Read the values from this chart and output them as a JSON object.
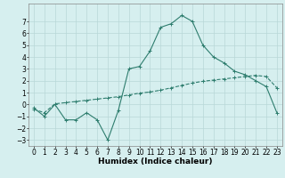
{
  "line1_x": [
    0,
    1,
    2,
    3,
    4,
    5,
    6,
    7,
    8,
    9,
    10,
    11,
    12,
    13,
    14,
    15,
    16,
    17,
    18,
    19,
    20,
    21,
    22,
    23
  ],
  "line1_y": [
    -0.3,
    -1.0,
    0.0,
    -1.3,
    -1.3,
    -0.7,
    -1.3,
    -3.0,
    -0.5,
    3.0,
    3.2,
    4.5,
    6.5,
    6.8,
    7.5,
    7.0,
    5.0,
    4.0,
    3.5,
    2.8,
    2.5,
    2.0,
    1.5,
    -0.7
  ],
  "line2_x": [
    0,
    1,
    2,
    3,
    4,
    5,
    6,
    7,
    8,
    9,
    10,
    11,
    12,
    13,
    14,
    15,
    16,
    17,
    18,
    19,
    20,
    21,
    22,
    23
  ],
  "line2_y": [
    -0.4,
    -0.7,
    0.05,
    0.15,
    0.25,
    0.35,
    0.45,
    0.55,
    0.65,
    0.8,
    0.95,
    1.05,
    1.2,
    1.4,
    1.6,
    1.8,
    1.95,
    2.05,
    2.15,
    2.25,
    2.35,
    2.45,
    2.35,
    1.4
  ],
  "line_color": "#2e7d6e",
  "bg_color": "#d6efef",
  "grid_color": "#b8d8d8",
  "xlabel": "Humidex (Indice chaleur)",
  "ylim": [
    -3.5,
    8.5
  ],
  "xlim": [
    -0.5,
    23.5
  ],
  "yticks": [
    -3,
    -2,
    -1,
    0,
    1,
    2,
    3,
    4,
    5,
    6,
    7
  ],
  "xticks": [
    0,
    1,
    2,
    3,
    4,
    5,
    6,
    7,
    8,
    9,
    10,
    11,
    12,
    13,
    14,
    15,
    16,
    17,
    18,
    19,
    20,
    21,
    22,
    23
  ],
  "marker": "+",
  "linewidth": 0.8,
  "fontsize": 5.5,
  "xlabel_fontsize": 6.5
}
